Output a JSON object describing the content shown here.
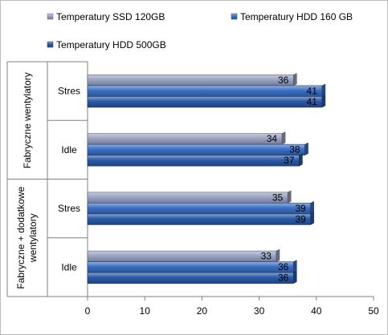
{
  "chart_data": {
    "type": "bar",
    "orientation": "horizontal",
    "legend": {
      "position": "top",
      "entries": [
        {
          "label": "Temperatury SSD 120GB",
          "color": "#9aa4c4"
        },
        {
          "label": "Temperatury HDD 160 GB",
          "color": "#3a6fc4"
        },
        {
          "label": "Temperatury HDD 500GB",
          "color": "#2a5aa8"
        }
      ]
    },
    "groups": [
      {
        "label": "Fabryczne  wentylatory",
        "categories": [
          "Stres",
          "Idle"
        ]
      },
      {
        "label": "Fabryczne + dodatkowe wentylatory",
        "categories": [
          "Stres",
          "Idle"
        ]
      }
    ],
    "series": [
      {
        "name": "Temperatury SSD 120GB",
        "color": "#9aa4c4",
        "values": [
          36,
          34,
          35,
          33
        ]
      },
      {
        "name": "Temperatury HDD 160 GB",
        "color": "#3a6fc4",
        "values": [
          41,
          38,
          39,
          36
        ]
      },
      {
        "name": "Temperatury HDD 500GB",
        "color": "#2a5aa8",
        "values": [
          41,
          37,
          39,
          36
        ]
      }
    ],
    "xlim": [
      0,
      50
    ],
    "xticks": [
      0,
      10,
      20,
      30,
      40,
      50
    ],
    "grid": false,
    "data_labels": true
  }
}
